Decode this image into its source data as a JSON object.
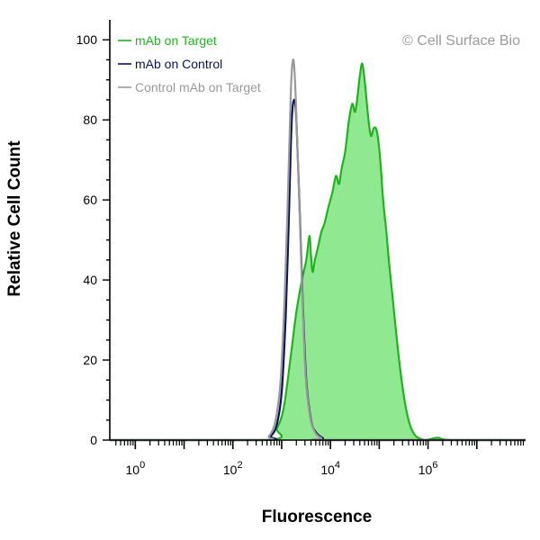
{
  "chart_data": {
    "type": "area",
    "title": "",
    "xlabel": "Fluorescence",
    "ylabel": "Relative Cell Count",
    "x_scale": "log",
    "xlim": [
      0.3,
      100000000
    ],
    "ylim": [
      0,
      105
    ],
    "x_ticks": [
      {
        "base": "10",
        "exp": "0",
        "value": 1
      },
      {
        "base": "10",
        "exp": "2",
        "value": 100
      },
      {
        "base": "10",
        "exp": "4",
        "value": 10000
      },
      {
        "base": "10",
        "exp": "6",
        "value": 1000000
      }
    ],
    "y_ticks": [
      "0",
      "20",
      "40",
      "60",
      "80",
      "100"
    ],
    "copyright": "© Cell Surface Bio",
    "legend_position": "top-left",
    "series": [
      {
        "name": "mAb on Target",
        "color": "#1fb31f",
        "fill": "#90e890",
        "filled": true,
        "x": [
          0.3,
          500,
          800,
          1100,
          1500,
          2000,
          2600,
          3200,
          3700,
          4000,
          4300,
          4800,
          5500,
          6500,
          7500,
          9000,
          11000,
          13000,
          15000,
          17000,
          20000,
          24000,
          28000,
          32000,
          36000,
          40000,
          45000,
          52000,
          60000,
          68000,
          78000,
          90000,
          105000,
          120000,
          140000,
          160000,
          190000,
          230000,
          280000,
          340000,
          420000,
          520000,
          650000,
          900000,
          1600000,
          3000000,
          100000000
        ],
        "y": [
          0,
          0,
          3,
          8,
          20,
          32,
          40,
          45,
          51,
          46,
          42,
          45,
          48,
          52,
          54,
          58,
          62,
          66,
          64,
          68,
          72,
          80,
          84,
          82,
          86,
          91,
          94,
          88,
          80,
          76,
          78,
          77,
          70,
          60,
          52,
          44,
          35,
          25,
          16,
          9,
          4,
          1.5,
          0.5,
          0,
          0.6,
          0,
          0
        ]
      },
      {
        "name": "mAb on Control",
        "color": "#0a1060",
        "filled": false,
        "x": [
          0.3,
          400,
          600,
          800,
          1000,
          1200,
          1400,
          1600,
          1800,
          2000,
          2300,
          2700,
          3200,
          4000,
          5000,
          7000,
          10000,
          100000000
        ],
        "y": [
          0,
          0,
          1,
          4,
          12,
          30,
          55,
          79,
          85,
          80,
          60,
          35,
          15,
          5,
          2,
          0.5,
          0,
          0
        ]
      },
      {
        "name": "Control mAb on Target",
        "color": "#999999",
        "filled": false,
        "x": [
          0.3,
          350,
          550,
          750,
          950,
          1150,
          1350,
          1550,
          1750,
          1950,
          2250,
          2650,
          3100,
          3800,
          4800,
          6500,
          9000,
          100000000
        ],
        "y": [
          0,
          0,
          1,
          5,
          15,
          36,
          62,
          88,
          95,
          85,
          62,
          36,
          16,
          6,
          2,
          0.5,
          0,
          0
        ]
      }
    ]
  }
}
